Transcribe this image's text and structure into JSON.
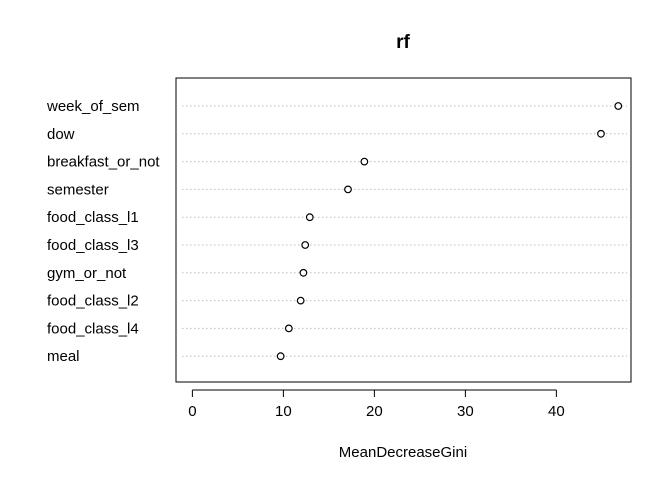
{
  "chart_data": {
    "type": "scatter",
    "title": "rf",
    "xlabel": "MeanDecreaseGini",
    "ylabel": "",
    "xlim": [
      -1.8,
      48.2
    ],
    "xticks": [
      0,
      10,
      20,
      30,
      40
    ],
    "grid": "dotted horizontal per variable",
    "variables": [
      {
        "name": "week_of_sem",
        "value": 46.8
      },
      {
        "name": "dow",
        "value": 44.9
      },
      {
        "name": "breakfast_or_not",
        "value": 18.9
      },
      {
        "name": "semester",
        "value": 17.1
      },
      {
        "name": "food_class_l1",
        "value": 12.9
      },
      {
        "name": "food_class_l3",
        "value": 12.4
      },
      {
        "name": "gym_or_not",
        "value": 12.2
      },
      {
        "name": "food_class_l2",
        "value": 11.9
      },
      {
        "name": "food_class_l4",
        "value": 10.6
      },
      {
        "name": "meal",
        "value": 9.7
      }
    ]
  }
}
